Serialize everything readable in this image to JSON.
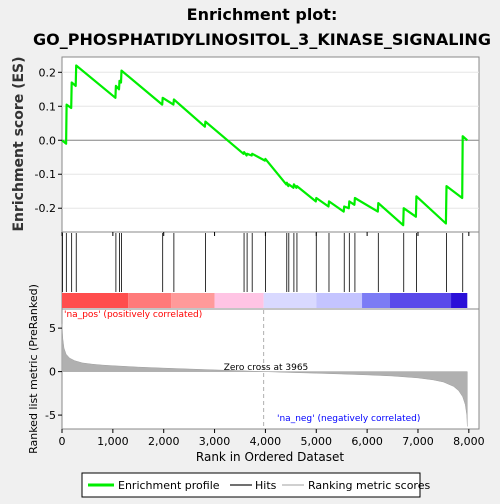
{
  "chart_data": {
    "type": "line",
    "title_line1": "Enrichment plot:",
    "title_line2": "GO_PHOSPHATIDYLINOSITOL_3_KINASE_SIGNALING",
    "es_ylabel": "Enrichment score (ES)",
    "metric_ylabel": "Ranked list metric (PreRanked)",
    "xlabel": "Rank in Ordered Dataset",
    "xlim": [
      0,
      8200
    ],
    "x_ticks": [
      0,
      1000,
      2000,
      3000,
      4000,
      5000,
      6000,
      7000,
      8000
    ],
    "x_tick_labels": [
      "0",
      "1,000",
      "2,000",
      "3,000",
      "4,000",
      "5,000",
      "6,000",
      "7,000",
      "8,000"
    ],
    "es_ylim": [
      -0.27,
      0.245
    ],
    "es_ticks": [
      -0.2,
      -0.1,
      0.0,
      0.1,
      0.2
    ],
    "es_tick_labels": [
      "-0.2",
      "-0.1",
      "0.0",
      "0.1",
      "0.2"
    ],
    "metric_ylim": [
      -6.6,
      7.2
    ],
    "metric_ticks": [
      -5,
      0,
      5
    ],
    "metric_tick_labels": [
      "-5",
      "0",
      "5"
    ],
    "n_genes": 7970,
    "zero_cross_rank": 3965,
    "zero_cross_label": "Zero cross at 3965",
    "pos_label": "'na_pos' (positively correlated)",
    "neg_label": "'na_neg' (negatively correlated)",
    "colors": {
      "es_line": "#00ee00",
      "hits": "#000000",
      "metric_fill": "#b0b0b0",
      "pos_label": "#ff0000",
      "neg_label": "#0000ff",
      "zero_line": "#b0b0b0"
    },
    "hits": [
      10,
      85,
      190,
      280,
      1060,
      1130,
      1170,
      1980,
      2200,
      2820,
      3580,
      3640,
      3740,
      4000,
      4420,
      4460,
      4560,
      4620,
      5000,
      5250,
      5550,
      5650,
      5760,
      6220,
      6720,
      6970,
      7560,
      7880
    ],
    "es_curve": [
      [
        0,
        0.0
      ],
      [
        80,
        -0.01
      ],
      [
        90,
        0.105
      ],
      [
        180,
        0.095
      ],
      [
        190,
        0.17
      ],
      [
        270,
        0.16
      ],
      [
        280,
        0.22
      ],
      [
        1050,
        0.125
      ],
      [
        1060,
        0.16
      ],
      [
        1120,
        0.15
      ],
      [
        1130,
        0.175
      ],
      [
        1160,
        0.17
      ],
      [
        1170,
        0.205
      ],
      [
        1970,
        0.105
      ],
      [
        1980,
        0.125
      ],
      [
        2190,
        0.105
      ],
      [
        2200,
        0.12
      ],
      [
        2810,
        0.04
      ],
      [
        2820,
        0.055
      ],
      [
        3570,
        -0.04
      ],
      [
        3580,
        -0.035
      ],
      [
        3630,
        -0.045
      ],
      [
        3640,
        -0.04
      ],
      [
        3730,
        -0.045
      ],
      [
        3740,
        -0.04
      ],
      [
        3990,
        -0.06
      ],
      [
        4000,
        -0.055
      ],
      [
        4410,
        -0.13
      ],
      [
        4420,
        -0.125
      ],
      [
        4450,
        -0.135
      ],
      [
        4460,
        -0.13
      ],
      [
        4550,
        -0.14
      ],
      [
        4560,
        -0.13
      ],
      [
        4610,
        -0.14
      ],
      [
        4620,
        -0.135
      ],
      [
        4990,
        -0.18
      ],
      [
        5000,
        -0.17
      ],
      [
        5240,
        -0.195
      ],
      [
        5250,
        -0.18
      ],
      [
        5540,
        -0.21
      ],
      [
        5550,
        -0.195
      ],
      [
        5640,
        -0.2
      ],
      [
        5650,
        -0.18
      ],
      [
        5750,
        -0.19
      ],
      [
        5760,
        -0.17
      ],
      [
        6210,
        -0.21
      ],
      [
        6220,
        -0.185
      ],
      [
        6710,
        -0.25
      ],
      [
        6720,
        -0.2
      ],
      [
        6960,
        -0.225
      ],
      [
        6970,
        -0.165
      ],
      [
        7550,
        -0.245
      ],
      [
        7560,
        -0.135
      ],
      [
        7870,
        -0.17
      ],
      [
        7880,
        0.012
      ],
      [
        7970,
        0.0
      ]
    ],
    "metric_curve": [
      [
        0,
        5.5
      ],
      [
        15,
        3.8
      ],
      [
        40,
        2.7
      ],
      [
        80,
        2.0
      ],
      [
        150,
        1.55
      ],
      [
        250,
        1.25
      ],
      [
        400,
        1.0
      ],
      [
        600,
        0.85
      ],
      [
        800,
        0.75
      ],
      [
        1000,
        0.68
      ],
      [
        1500,
        0.52
      ],
      [
        2000,
        0.4
      ],
      [
        2500,
        0.3
      ],
      [
        3000,
        0.2
      ],
      [
        3500,
        0.1
      ],
      [
        3965,
        0.0
      ],
      [
        4500,
        -0.1
      ],
      [
        5000,
        -0.18
      ],
      [
        5500,
        -0.28
      ],
      [
        6000,
        -0.38
      ],
      [
        6500,
        -0.5
      ],
      [
        7000,
        -0.72
      ],
      [
        7300,
        -0.95
      ],
      [
        7500,
        -1.2
      ],
      [
        7700,
        -1.7
      ],
      [
        7800,
        -2.2
      ],
      [
        7880,
        -2.9
      ],
      [
        7930,
        -3.8
      ],
      [
        7960,
        -5.0
      ],
      [
        7970,
        -6.3
      ]
    ],
    "heat_segments": [
      {
        "from": 0,
        "to": 1300,
        "color": "#ff4d4d"
      },
      {
        "from": 1300,
        "to": 2150,
        "color": "#ff7a7a"
      },
      {
        "from": 2150,
        "to": 3000,
        "color": "#ff9a9a"
      },
      {
        "from": 3000,
        "to": 3965,
        "color": "#ffc4e4"
      },
      {
        "from": 3965,
        "to": 5000,
        "color": "#d9d9ff"
      },
      {
        "from": 5000,
        "to": 5900,
        "color": "#c4c4ff"
      },
      {
        "from": 5900,
        "to": 6450,
        "color": "#7c7cf5"
      },
      {
        "from": 6450,
        "to": 7650,
        "color": "#5a4aea"
      },
      {
        "from": 7650,
        "to": 7970,
        "color": "#2a10d8"
      }
    ]
  },
  "legend": {
    "items": [
      {
        "label": "Enrichment profile",
        "color": "#00ee00"
      },
      {
        "label": "Hits",
        "color": "#707070"
      },
      {
        "label": "Ranking metric scores",
        "color": "#d0d0d0"
      }
    ]
  }
}
